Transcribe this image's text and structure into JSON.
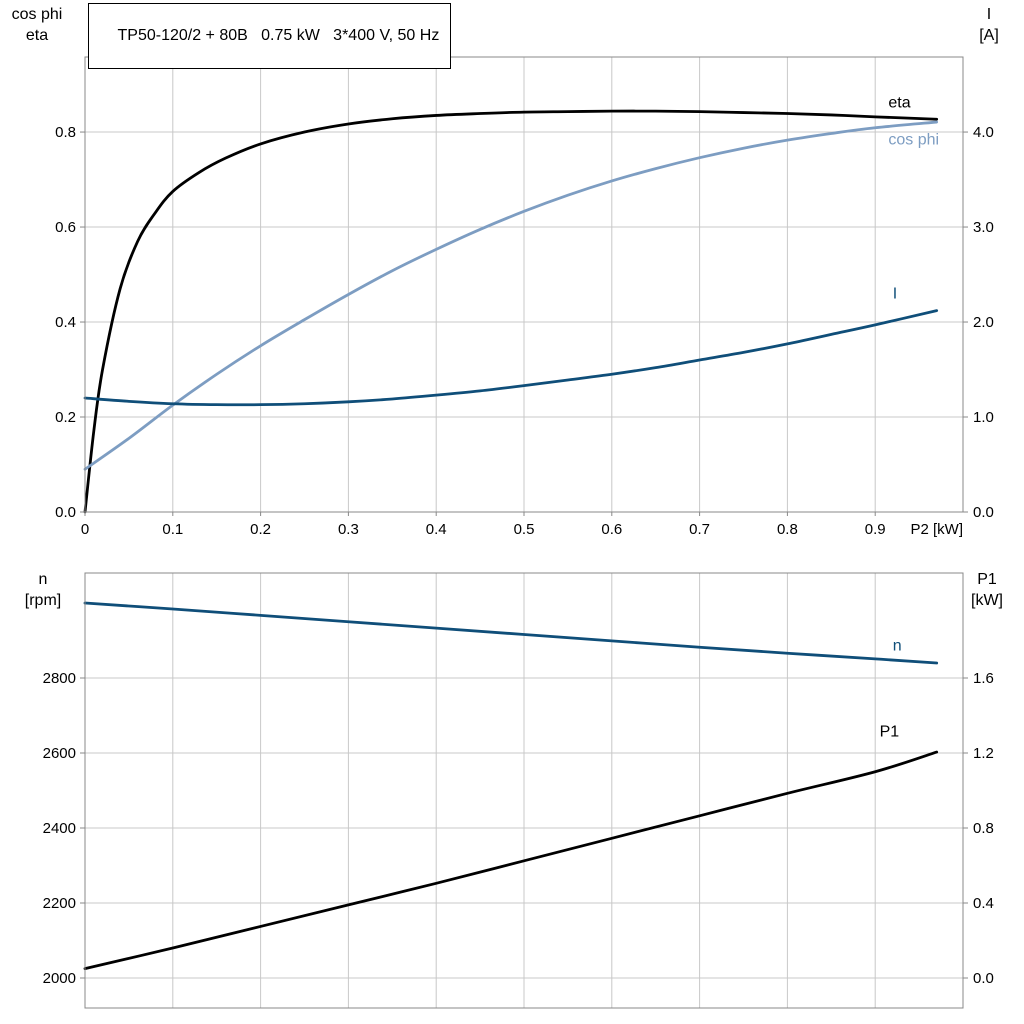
{
  "title_box": {
    "text": "TP50-120/2 + 80B   0.75 kW   3*400 V, 50 Hz"
  },
  "axis_corner_labels": {
    "top_left": [
      "cos phi",
      "eta"
    ],
    "top_right": [
      "I",
      "[A]"
    ],
    "bottom_left": [
      "n",
      "[rpm]"
    ],
    "bottom_right": [
      "P1",
      "[kW]"
    ]
  },
  "colors": {
    "background": "#ffffff",
    "black": "#000000",
    "light_blue": "#7d9dc2",
    "dark_blue": "#0f4e79",
    "grid": "#c8c8c8",
    "border": "#888888",
    "text": "#000000"
  },
  "chart_data": [
    {
      "type": "line",
      "name": "top-chart",
      "title": "TP50-120/2 + 80B   0.75 kW   3*400 V, 50 Hz",
      "grid": true,
      "legend_position": "end-of-curve",
      "x_axis": {
        "lim": [
          0,
          1.0
        ],
        "ticks": [
          0,
          0.1,
          0.2,
          0.3,
          0.4,
          0.5,
          0.6,
          0.7,
          0.8,
          0.9
        ],
        "tick_labels": [
          "0",
          "0.1",
          "0.2",
          "0.3",
          "0.4",
          "0.5",
          "0.6",
          "0.7",
          "0.8",
          "0.9"
        ],
        "unit_label": "P2 [kW]"
      },
      "left_axis": {
        "label": "cos phi / eta",
        "lim": [
          0,
          0.958
        ],
        "ticks": [
          0,
          0.2,
          0.4,
          0.6,
          0.8
        ],
        "tick_labels": [
          "0.0",
          "0.2",
          "0.4",
          "0.6",
          "0.8"
        ]
      },
      "right_axis": {
        "label": "I [A]",
        "lim": [
          0,
          4.79
        ],
        "ticks": [
          0,
          1,
          2,
          3,
          4
        ],
        "tick_labels": [
          "0.0",
          "1.0",
          "2.0",
          "3.0",
          "4.0"
        ]
      },
      "series": [
        {
          "name": "eta",
          "label": "eta",
          "axis": "left",
          "color": "black",
          "label_pos": [
            0.915,
            0.862
          ],
          "points": [
            [
              0,
              0
            ],
            [
              0.01,
              0.17
            ],
            [
              0.02,
              0.3
            ],
            [
              0.04,
              0.47
            ],
            [
              0.06,
              0.57
            ],
            [
              0.08,
              0.63
            ],
            [
              0.1,
              0.675
            ],
            [
              0.13,
              0.715
            ],
            [
              0.16,
              0.745
            ],
            [
              0.2,
              0.775
            ],
            [
              0.25,
              0.8
            ],
            [
              0.3,
              0.817
            ],
            [
              0.35,
              0.828
            ],
            [
              0.4,
              0.835
            ],
            [
              0.45,
              0.839
            ],
            [
              0.5,
              0.842
            ],
            [
              0.55,
              0.843
            ],
            [
              0.6,
              0.844
            ],
            [
              0.65,
              0.844
            ],
            [
              0.7,
              0.843
            ],
            [
              0.75,
              0.841
            ],
            [
              0.8,
              0.839
            ],
            [
              0.85,
              0.836
            ],
            [
              0.9,
              0.832
            ],
            [
              0.97,
              0.827
            ]
          ]
        },
        {
          "name": "cos-phi",
          "label": "cos phi",
          "axis": "left",
          "color": "light_blue",
          "label_pos": [
            0.915,
            0.784
          ],
          "points": [
            [
              0,
              0.09
            ],
            [
              0.05,
              0.155
            ],
            [
              0.1,
              0.225
            ],
            [
              0.15,
              0.29
            ],
            [
              0.2,
              0.35
            ],
            [
              0.25,
              0.405
            ],
            [
              0.3,
              0.458
            ],
            [
              0.35,
              0.508
            ],
            [
              0.4,
              0.553
            ],
            [
              0.45,
              0.595
            ],
            [
              0.5,
              0.633
            ],
            [
              0.55,
              0.667
            ],
            [
              0.6,
              0.697
            ],
            [
              0.65,
              0.723
            ],
            [
              0.7,
              0.746
            ],
            [
              0.75,
              0.766
            ],
            [
              0.8,
              0.783
            ],
            [
              0.85,
              0.797
            ],
            [
              0.9,
              0.809
            ],
            [
              0.97,
              0.821
            ]
          ]
        },
        {
          "name": "current",
          "label": "I",
          "axis": "right",
          "color": "dark_blue",
          "label_pos": [
            0.92,
            2.3
          ],
          "points": [
            [
              0,
              1.2
            ],
            [
              0.05,
              1.165
            ],
            [
              0.1,
              1.14
            ],
            [
              0.15,
              1.13
            ],
            [
              0.2,
              1.13
            ],
            [
              0.25,
              1.14
            ],
            [
              0.3,
              1.16
            ],
            [
              0.35,
              1.19
            ],
            [
              0.4,
              1.23
            ],
            [
              0.45,
              1.275
            ],
            [
              0.5,
              1.33
            ],
            [
              0.55,
              1.39
            ],
            [
              0.6,
              1.45
            ],
            [
              0.65,
              1.52
            ],
            [
              0.7,
              1.6
            ],
            [
              0.75,
              1.68
            ],
            [
              0.8,
              1.77
            ],
            [
              0.85,
              1.87
            ],
            [
              0.9,
              1.97
            ],
            [
              0.97,
              2.12
            ]
          ]
        }
      ]
    },
    {
      "type": "line",
      "name": "bottom-chart",
      "title": "",
      "grid": true,
      "legend_position": "end-of-curve",
      "x_axis": {
        "lim": [
          0,
          1.0
        ],
        "ticks": [
          0,
          0.1,
          0.2,
          0.3,
          0.4,
          0.5,
          0.6,
          0.7,
          0.8,
          0.9
        ],
        "tick_labels": [],
        "unit_label": ""
      },
      "left_axis": {
        "label": "n [rpm]",
        "lim": [
          1920,
          3080
        ],
        "ticks": [
          2000,
          2200,
          2400,
          2600,
          2800
        ],
        "tick_labels": [
          "2000",
          "2200",
          "2400",
          "2600",
          "2800"
        ]
      },
      "right_axis": {
        "label": "P1 [kW]",
        "lim": [
          -0.16,
          2.16
        ],
        "ticks": [
          0,
          0.4,
          0.8,
          1.2,
          1.6
        ],
        "tick_labels": [
          "0.0",
          "0.4",
          "0.8",
          "1.2",
          "1.6"
        ]
      },
      "series": [
        {
          "name": "speed",
          "label": "n",
          "axis": "left",
          "color": "dark_blue",
          "label_pos": [
            0.92,
            2887
          ],
          "points": [
            [
              0,
              3000
            ],
            [
              0.1,
              2984
            ],
            [
              0.2,
              2967
            ],
            [
              0.3,
              2950
            ],
            [
              0.4,
              2933
            ],
            [
              0.5,
              2916
            ],
            [
              0.6,
              2899
            ],
            [
              0.7,
              2882
            ],
            [
              0.8,
              2866
            ],
            [
              0.9,
              2851
            ],
            [
              0.97,
              2840
            ]
          ]
        },
        {
          "name": "p1",
          "label": "P1",
          "axis": "right",
          "color": "black",
          "label_pos": [
            0.905,
            1.315
          ],
          "points": [
            [
              0,
              0.05
            ],
            [
              0.1,
              0.16
            ],
            [
              0.2,
              0.275
            ],
            [
              0.3,
              0.39
            ],
            [
              0.4,
              0.505
            ],
            [
              0.5,
              0.625
            ],
            [
              0.6,
              0.745
            ],
            [
              0.7,
              0.865
            ],
            [
              0.8,
              0.985
            ],
            [
              0.9,
              1.1
            ],
            [
              0.97,
              1.205
            ]
          ]
        }
      ]
    }
  ]
}
